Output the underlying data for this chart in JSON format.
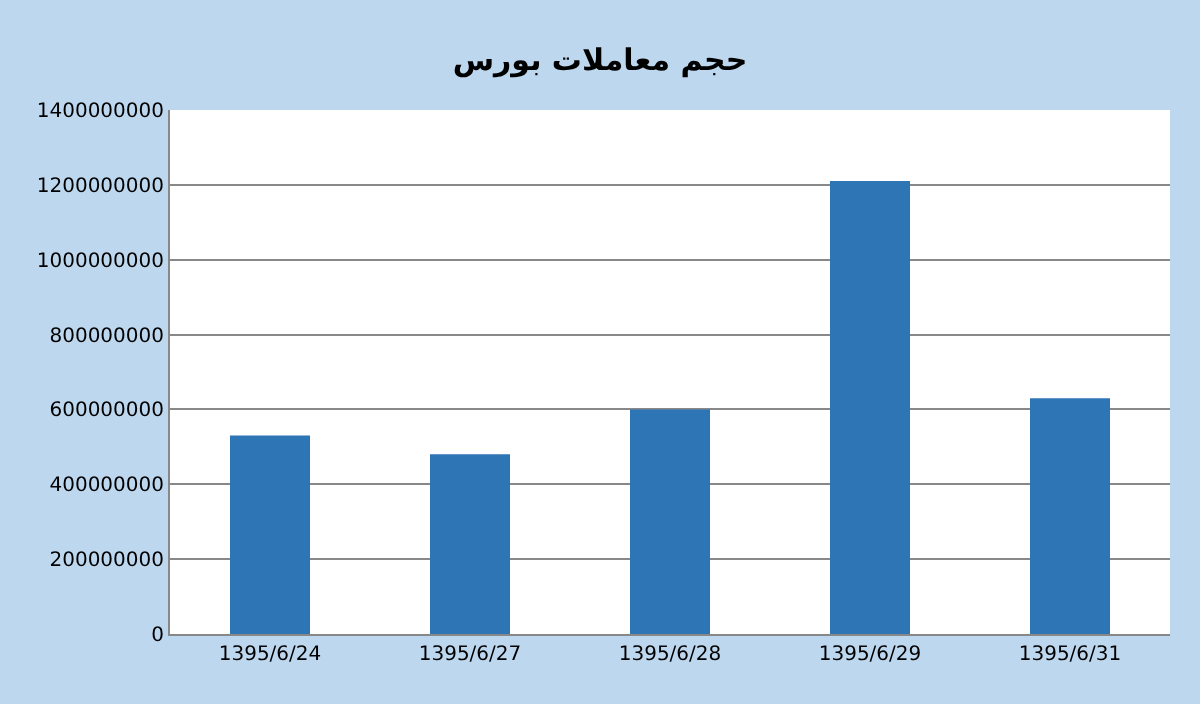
{
  "chart_data": {
    "type": "bar",
    "title": "حجم معاملات بورس",
    "categories": [
      "1395/6/24",
      "1395/6/27",
      "1395/6/28",
      "1395/6/29",
      "1395/6/31"
    ],
    "values": [
      530000000,
      480000000,
      600000000,
      1210000000,
      630000000
    ],
    "color": "#2e75b6",
    "ylim": [
      0,
      1400000000
    ],
    "yticks": [
      0,
      200000000,
      400000000,
      600000000,
      800000000,
      1000000000,
      1200000000,
      1400000000
    ],
    "grid": "y"
  }
}
